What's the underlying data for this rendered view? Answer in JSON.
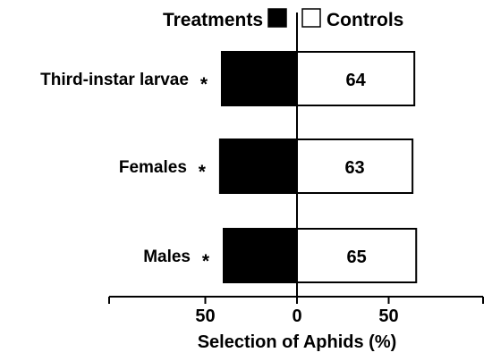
{
  "chart_data": {
    "type": "bar",
    "orientation": "horizontal",
    "subtype": "diverging",
    "title": "",
    "xlabel": "Selection of Aphids (%)",
    "ylabel": "",
    "xlim": [
      -100,
      100
    ],
    "x_ticks": [
      {
        "value": -50,
        "label": "50"
      },
      {
        "value": 0,
        "label": "0"
      },
      {
        "value": 50,
        "label": "50"
      }
    ],
    "grid": false,
    "legend_position": "top",
    "categories": [
      "Third-instar larvae",
      "Females",
      "Males"
    ],
    "significance": [
      "*",
      "*",
      "*"
    ],
    "series": [
      {
        "name": "Treatments",
        "color": "#000000",
        "text_color": "#ffffff",
        "direction": "left",
        "values": [
          41,
          42,
          40
        ]
      },
      {
        "name": "Controls",
        "color": "#ffffff",
        "text_color": "#000000",
        "direction": "right",
        "values": [
          64,
          63,
          65
        ]
      }
    ]
  }
}
